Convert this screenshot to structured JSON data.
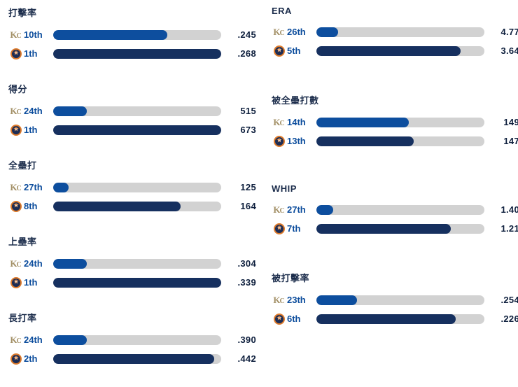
{
  "teams": {
    "kc": {
      "name": "Kansas City Royals",
      "abbr_k": "K",
      "abbr_c": "C"
    },
    "hou": {
      "name": "Houston Astros",
      "star": "★",
      "letter": "H"
    }
  },
  "colors": {
    "kc_bar": "#0d4e9e",
    "hou_bar": "#16305f",
    "track": "#d2d2d2",
    "rank_text": "#0b4c9c",
    "value_text": "#0e1f3d",
    "title_text": "#1a2b4a",
    "kc_gold": "#a39066",
    "hou_orange": "#dd7a2b",
    "hou_navy": "#1c2d56"
  },
  "chart_data": {
    "type": "bar",
    "orientation": "horizontal",
    "legend_position": "none",
    "grid": false,
    "columns": [
      {
        "side": "left",
        "sections": [
          {
            "title": "打擊率",
            "rows": [
              {
                "team": "kc",
                "rank": "10th",
                "value": ".245",
                "fill": 0.68
              },
              {
                "team": "hou",
                "rank": "1th",
                "value": ".268",
                "fill": 1.0
              }
            ]
          },
          {
            "title": "得分",
            "rows": [
              {
                "team": "kc",
                "rank": "24th",
                "value": "515",
                "fill": 0.2
              },
              {
                "team": "hou",
                "rank": "1th",
                "value": "673",
                "fill": 1.0
              }
            ]
          },
          {
            "title": "全壘打",
            "rows": [
              {
                "team": "kc",
                "rank": "27th",
                "value": "125",
                "fill": 0.09
              },
              {
                "team": "hou",
                "rank": "8th",
                "value": "164",
                "fill": 0.76
              }
            ]
          },
          {
            "title": "上壘率",
            "rows": [
              {
                "team": "kc",
                "rank": "24th",
                "value": ".304",
                "fill": 0.2
              },
              {
                "team": "hou",
                "rank": "1th",
                "value": ".339",
                "fill": 1.0
              }
            ]
          },
          {
            "title": "長打率",
            "rows": [
              {
                "team": "kc",
                "rank": "24th",
                "value": ".390",
                "fill": 0.2
              },
              {
                "team": "hou",
                "rank": "2th",
                "value": ".442",
                "fill": 0.96
              }
            ]
          }
        ]
      },
      {
        "side": "right",
        "sections": [
          {
            "title": "ERA",
            "rows": [
              {
                "team": "kc",
                "rank": "26th",
                "value": "4.77",
                "fill": 0.13
              },
              {
                "team": "hou",
                "rank": "5th",
                "value": "3.64",
                "fill": 0.86
              }
            ]
          },
          {
            "title": "被全壘打數",
            "rows": [
              {
                "team": "kc",
                "rank": "14th",
                "value": "149",
                "fill": 0.55
              },
              {
                "team": "hou",
                "rank": "13th",
                "value": "147",
                "fill": 0.58
              }
            ]
          },
          {
            "title": "WHIP",
            "rows": [
              {
                "team": "kc",
                "rank": "27th",
                "value": "1.40",
                "fill": 0.1
              },
              {
                "team": "hou",
                "rank": "7th",
                "value": "1.21",
                "fill": 0.8
              }
            ]
          },
          {
            "title": "被打擊率",
            "rows": [
              {
                "team": "kc",
                "rank": "23th",
                "value": ".254",
                "fill": 0.24
              },
              {
                "team": "hou",
                "rank": "6th",
                "value": ".226",
                "fill": 0.83
              }
            ]
          }
        ]
      }
    ]
  }
}
